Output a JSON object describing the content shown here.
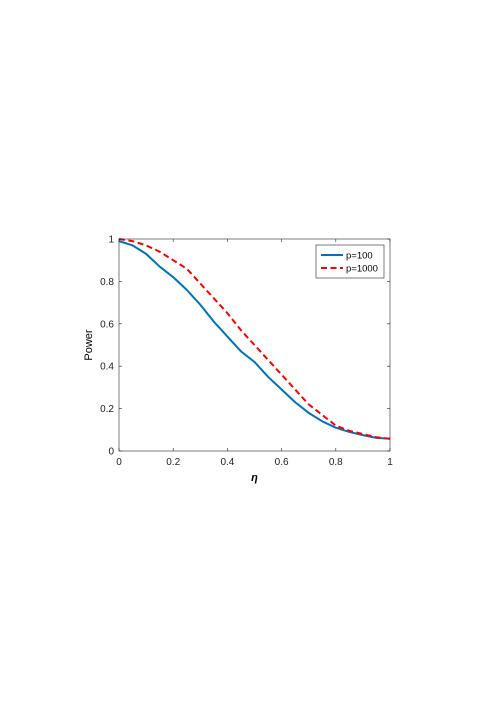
{
  "chart_data": {
    "type": "line",
    "xlabel": "η",
    "ylabel": "Power",
    "xlim": [
      0,
      1
    ],
    "ylim": [
      0,
      1
    ],
    "xticks": [
      0,
      0.2,
      0.4,
      0.6,
      0.8,
      1
    ],
    "xtick_labels": [
      "0",
      "0.2",
      "0.4",
      "0.6",
      "0.8",
      "1"
    ],
    "yticks": [
      0,
      0.2,
      0.4,
      0.6,
      0.8,
      1
    ],
    "ytick_labels": [
      "0",
      "0.2",
      "0.4",
      "0.6",
      "0.8",
      "1"
    ],
    "grid": false,
    "legend_position": "top-right",
    "series": [
      {
        "name": "p=100",
        "color": "#0072BD",
        "line_style": "solid",
        "x": [
          0,
          0.05,
          0.1,
          0.15,
          0.2,
          0.25,
          0.3,
          0.35,
          0.4,
          0.45,
          0.5,
          0.55,
          0.6,
          0.65,
          0.7,
          0.75,
          0.8,
          0.85,
          0.9,
          0.95,
          1.0
        ],
        "y": [
          0.99,
          0.97,
          0.93,
          0.87,
          0.82,
          0.76,
          0.69,
          0.61,
          0.54,
          0.47,
          0.42,
          0.35,
          0.29,
          0.23,
          0.18,
          0.14,
          0.11,
          0.09,
          0.075,
          0.062,
          0.058
        ]
      },
      {
        "name": "p=1000",
        "color": "#FF0000",
        "line_style": "dashed",
        "x": [
          0,
          0.05,
          0.1,
          0.15,
          0.2,
          0.25,
          0.3,
          0.35,
          0.4,
          0.45,
          0.5,
          0.55,
          0.6,
          0.65,
          0.7,
          0.75,
          0.8,
          0.85,
          0.9,
          0.95,
          1.0
        ],
        "y": [
          1.0,
          0.99,
          0.97,
          0.94,
          0.9,
          0.86,
          0.79,
          0.72,
          0.65,
          0.57,
          0.5,
          0.43,
          0.36,
          0.29,
          0.22,
          0.17,
          0.12,
          0.095,
          0.08,
          0.065,
          0.058
        ]
      }
    ]
  }
}
